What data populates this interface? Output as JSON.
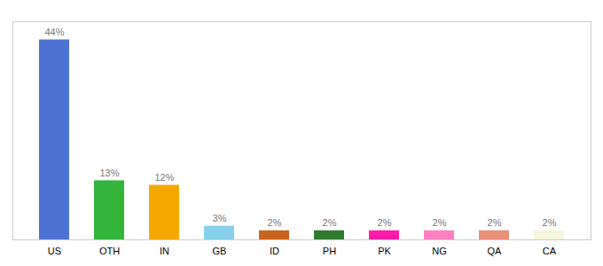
{
  "chart_data": {
    "type": "bar",
    "categories": [
      "US",
      "OTH",
      "IN",
      "GB",
      "ID",
      "PH",
      "PK",
      "NG",
      "QA",
      "CA"
    ],
    "values": [
      44,
      13,
      12,
      3,
      2,
      2,
      2,
      2,
      2,
      2
    ],
    "value_labels": [
      "44%",
      "13%",
      "12%",
      "3%",
      "2%",
      "2%",
      "2%",
      "2%",
      "2%",
      "2%"
    ],
    "colors": [
      "#4d72d4",
      "#33b53b",
      "#f5a800",
      "#87ceeb",
      "#c8621c",
      "#2e7a2e",
      "#ff1aaa",
      "#ff80c0",
      "#e8907a",
      "#f5f5dc"
    ],
    "ylim": [
      0,
      48
    ],
    "data_labels": true,
    "tick_labels": "x",
    "grid": false
  }
}
